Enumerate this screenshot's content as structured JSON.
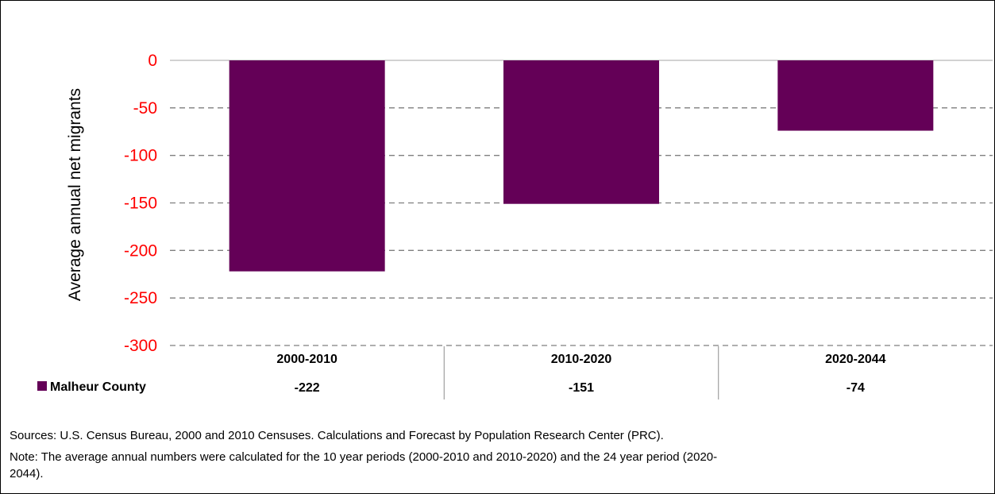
{
  "chart_data": {
    "type": "bar",
    "ylabel": "Average annual net migrants",
    "ylim": [
      -300,
      0
    ],
    "yticks": [
      0,
      -50,
      -100,
      -150,
      -200,
      -250,
      -300
    ],
    "grid": true,
    "legend_placement": "bottom-left data table",
    "categories": [
      "2000-2010",
      "2010-2020",
      "2020-2044"
    ],
    "series": [
      {
        "name": "Malheur County",
        "values": [
          -222,
          -151,
          -74
        ],
        "value_labels": [
          "-222",
          "-151",
          "-74"
        ]
      }
    ]
  },
  "colors": {
    "bar": "#640057",
    "tick_labels": "#ff0000",
    "grid": "#7f7f7f",
    "text": "#000000"
  },
  "notes": {
    "sources": "Sources: U.S. Census Bureau, 2000 and 2010 Censuses. Calculations and Forecast by Population Research Center (PRC).",
    "note_line1": "Note: The average annual numbers were calculated for the 10 year periods (2000-2010 and 2010-2020) and the 24 year period (2020-",
    "note_line2": "2044)."
  }
}
